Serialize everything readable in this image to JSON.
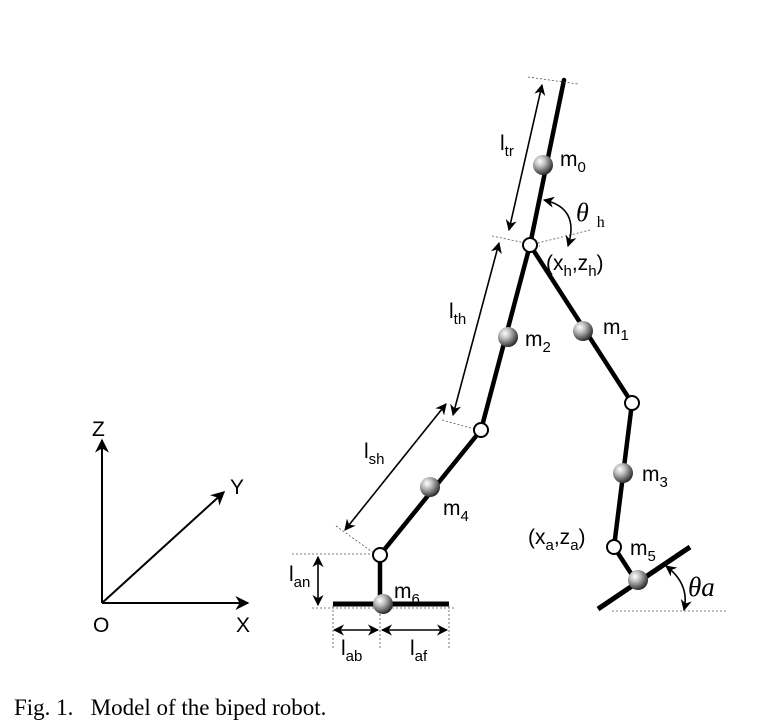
{
  "figure": {
    "labels": {
      "l_tr": "l",
      "l_tr_sub": "tr",
      "l_th": "l",
      "l_th_sub": "th",
      "l_sh": "l",
      "l_sh_sub": "sh",
      "l_an": "l",
      "l_an_sub": "an",
      "l_ab": "l",
      "l_ab_sub": "ab",
      "l_af": "l",
      "l_af_sub": "af",
      "m0": "m",
      "m0_sub": "0",
      "m1": "m",
      "m1_sub": "1",
      "m2": "m",
      "m2_sub": "2",
      "m3": "m",
      "m3_sub": "3",
      "m4": "m",
      "m4_sub": "4",
      "m5": "m",
      "m5_sub": "5",
      "m6": "m",
      "m6_sub": "6",
      "theta_h": "θ",
      "theta_h_sub": "h",
      "hip_coord_open": "(x",
      "hip_coord_x_sub": "h",
      "hip_coord_mid": ",z",
      "hip_coord_z_sub": "h",
      "hip_coord_close": ")",
      "ankle_coord_open": "(x",
      "ankle_coord_x_sub": "a",
      "ankle_coord_mid": ",z",
      "ankle_coord_z_sub": "a",
      "ankle_coord_close": ")",
      "theta_a": "θa"
    },
    "axes": {
      "z": "Z",
      "y": "Y",
      "x": "X",
      "origin": "O"
    }
  },
  "caption": "Fig. 1.   Model of the biped robot."
}
